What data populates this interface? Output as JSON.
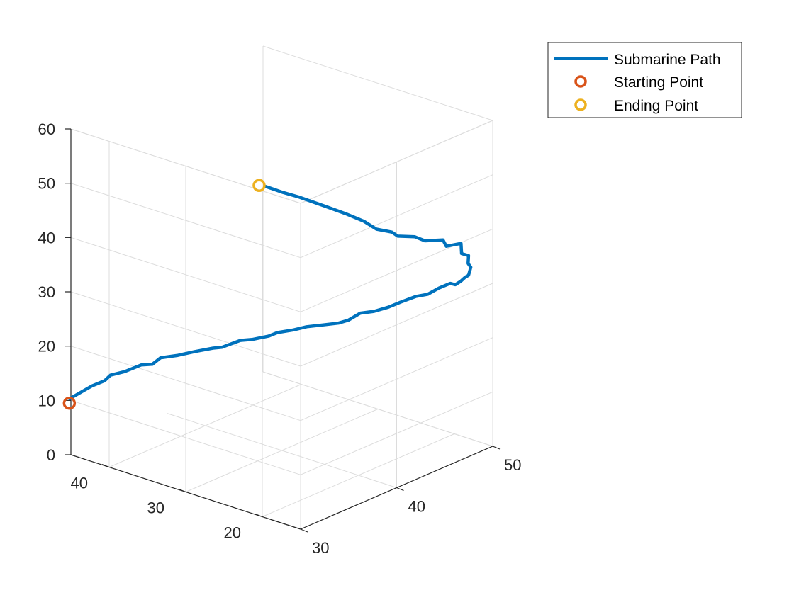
{
  "chart_data": {
    "type": "line3d",
    "title": "",
    "xlabel": "",
    "ylabel": "",
    "zlabel": "",
    "grid": true,
    "legend_position": "top-right-outside",
    "axes": {
      "x": {
        "range": [
          30,
          50
        ],
        "ticks": [
          30,
          40,
          50
        ],
        "tick_labels": [
          "30",
          "40",
          "50"
        ]
      },
      "y": {
        "range": [
          15,
          45
        ],
        "ticks": [
          20,
          30,
          40
        ],
        "tick_labels": [
          "20",
          "30",
          "40"
        ]
      },
      "z": {
        "range": [
          0,
          60
        ],
        "ticks": [
          0,
          10,
          20,
          30,
          40,
          50,
          60
        ],
        "tick_labels": [
          "0",
          "10",
          "20",
          "30",
          "40",
          "50",
          "60"
        ]
      }
    },
    "series": [
      {
        "name": "Submarine Path",
        "kind": "line",
        "color": "#0072BD",
        "points": [
          [
            30.2,
            45.4,
            10.0
          ],
          [
            31.0,
            43.5,
            12.6
          ],
          [
            31.6,
            42.6,
            13.5
          ],
          [
            31.8,
            42.1,
            14.6
          ],
          [
            32.4,
            41.0,
            15.3
          ],
          [
            33.0,
            39.6,
            16.7
          ],
          [
            33.3,
            38.5,
            17.1
          ],
          [
            33.6,
            37.8,
            18.4
          ],
          [
            34.2,
            36.4,
            19.0
          ],
          [
            34.8,
            34.8,
            20.0
          ],
          [
            35.4,
            33.2,
            20.9
          ],
          [
            35.7,
            32.4,
            21.2
          ],
          [
            36.4,
            30.9,
            22.6
          ],
          [
            36.9,
            30.0,
            22.8
          ],
          [
            37.5,
            28.6,
            23.6
          ],
          [
            37.8,
            27.8,
            24.4
          ],
          [
            38.5,
            26.6,
            24.9
          ],
          [
            39.0,
            25.5,
            25.6
          ],
          [
            39.7,
            24.2,
            26.0
          ],
          [
            40.4,
            23.1,
            26.3
          ],
          [
            40.8,
            22.3,
            26.9
          ],
          [
            41.4,
            21.5,
            28.1
          ],
          [
            42.1,
            20.6,
            28.3
          ],
          [
            42.8,
            19.6,
            29.0
          ],
          [
            43.5,
            18.9,
            29.7
          ],
          [
            44.3,
            17.9,
            30.6
          ],
          [
            45.0,
            17.2,
            30.8
          ],
          [
            45.6,
            16.5,
            31.8
          ],
          [
            46.3,
            15.9,
            32.4
          ],
          [
            46.5,
            15.5,
            32.2
          ],
          [
            46.9,
            15.3,
            32.6
          ],
          [
            47.2,
            15.1,
            33.2
          ],
          [
            47.4,
            14.9,
            33.5
          ],
          [
            47.8,
            15.1,
            34.6
          ],
          [
            47.6,
            15.2,
            35.4
          ],
          [
            47.8,
            15.4,
            36.6
          ],
          [
            47.4,
            15.8,
            37.1
          ],
          [
            47.5,
            16.0,
            38.8
          ],
          [
            46.6,
            16.8,
            38.6
          ],
          [
            46.5,
            17.1,
            39.7
          ],
          [
            45.5,
            18.2,
            39.8
          ],
          [
            45.0,
            18.9,
            40.6
          ],
          [
            44.1,
            20.0,
            40.9
          ],
          [
            43.8,
            20.4,
            41.7
          ],
          [
            43.0,
            21.4,
            42.4
          ],
          [
            42.4,
            22.3,
            43.9
          ],
          [
            41.5,
            23.4,
            45.4
          ],
          [
            40.2,
            24.8,
            47.3
          ],
          [
            38.8,
            26.3,
            49.3
          ],
          [
            37.9,
            27.2,
            50.4
          ],
          [
            36.9,
            28.3,
            51.8
          ]
        ]
      },
      {
        "name": "Starting Point",
        "kind": "marker",
        "color": "#D95319",
        "points": [
          [
            30.0,
            45.2,
            9.4
          ]
        ]
      },
      {
        "name": "Ending Point",
        "kind": "marker",
        "color": "#EDB120",
        "points": [
          [
            36.6,
            28.7,
            52.0
          ]
        ]
      }
    ]
  }
}
